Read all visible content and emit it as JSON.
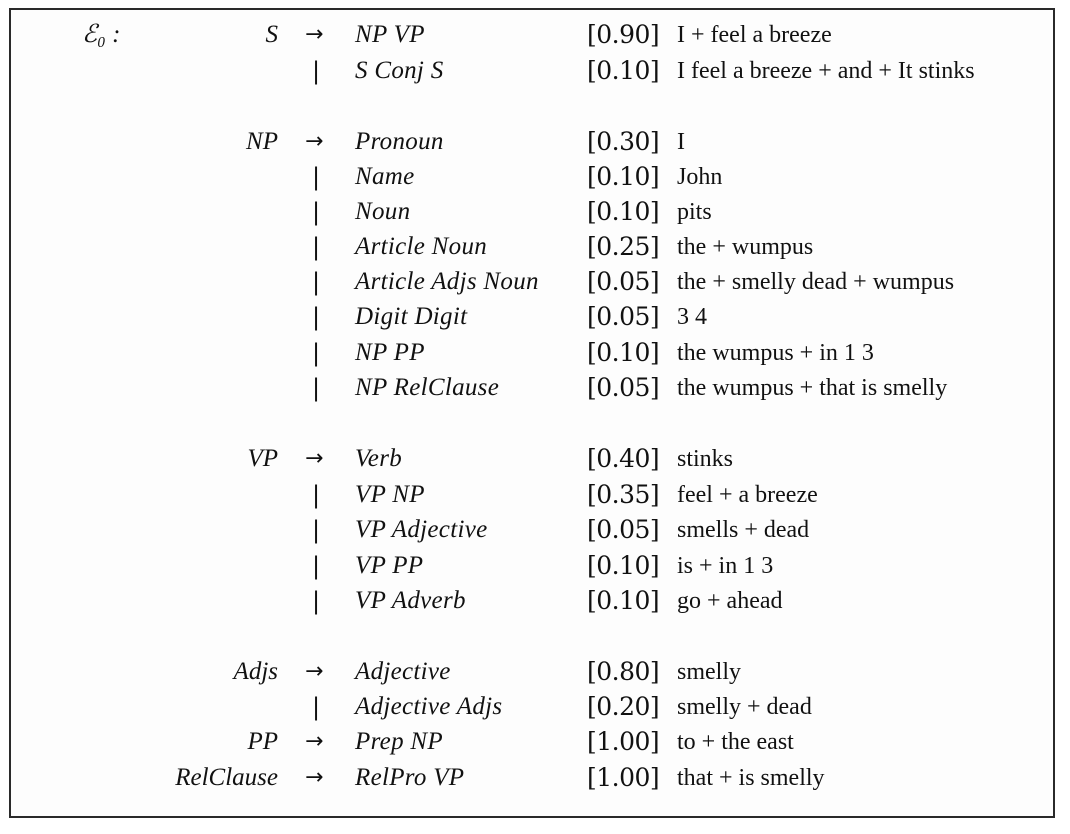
{
  "grammar_label": "ℰ₀ :",
  "arrow_symbol": "→",
  "bar_symbol": "|",
  "rules": [
    {
      "lhs": "S",
      "rhs": "NP VP",
      "prob": "[0.90]",
      "example": "I + feel a breeze",
      "first": true
    },
    {
      "lhs": "",
      "rhs": "S Conj S",
      "prob": "[0.10]",
      "example": "I feel a breeze + and + It stinks",
      "first": false
    },
    {
      "lhs": "NP",
      "rhs": "Pronoun",
      "prob": "[0.30]",
      "example": "I",
      "first": true
    },
    {
      "lhs": "",
      "rhs": "Name",
      "prob": "[0.10]",
      "example": "John",
      "first": false
    },
    {
      "lhs": "",
      "rhs": "Noun",
      "prob": "[0.10]",
      "example": "pits",
      "first": false
    },
    {
      "lhs": "",
      "rhs": "Article Noun",
      "prob": "[0.25]",
      "example": "the + wumpus",
      "first": false
    },
    {
      "lhs": "",
      "rhs": "Article Adjs Noun",
      "prob": "[0.05]",
      "example": "the + smelly dead + wumpus",
      "first": false
    },
    {
      "lhs": "",
      "rhs": "Digit Digit",
      "prob": "[0.05]",
      "example": "3 4",
      "first": false
    },
    {
      "lhs": "",
      "rhs": "NP PP",
      "prob": "[0.10]",
      "example": "the wumpus + in 1 3",
      "first": false
    },
    {
      "lhs": "",
      "rhs": "NP RelClause",
      "prob": "[0.05]",
      "example": "the wumpus + that is smelly",
      "first": false
    },
    {
      "lhs": "VP",
      "rhs": "Verb",
      "prob": "[0.40]",
      "example": "stinks",
      "first": true
    },
    {
      "lhs": "",
      "rhs": "VP NP",
      "prob": "[0.35]",
      "example": "feel + a breeze",
      "first": false
    },
    {
      "lhs": "",
      "rhs": "VP Adjective",
      "prob": "[0.05]",
      "example": "smells + dead",
      "first": false
    },
    {
      "lhs": "",
      "rhs": "VP PP",
      "prob": "[0.10]",
      "example": "is + in 1 3",
      "first": false
    },
    {
      "lhs": "",
      "rhs": "VP Adverb",
      "prob": "[0.10]",
      "example": "go + ahead",
      "first": false
    },
    {
      "lhs": "Adjs",
      "rhs": "Adjective",
      "prob": "[0.80]",
      "example": "smelly",
      "first": true
    },
    {
      "lhs": "",
      "rhs": "Adjective Adjs",
      "prob": "[0.20]",
      "example": "smelly + dead",
      "first": false
    },
    {
      "lhs": "PP",
      "rhs": "Prep NP",
      "prob": "[1.00]",
      "example": "to + the east",
      "first": true
    },
    {
      "lhs": "RelClause",
      "rhs": "RelPro VP",
      "prob": "[1.00]",
      "example": "that + is smelly",
      "first": true
    }
  ]
}
